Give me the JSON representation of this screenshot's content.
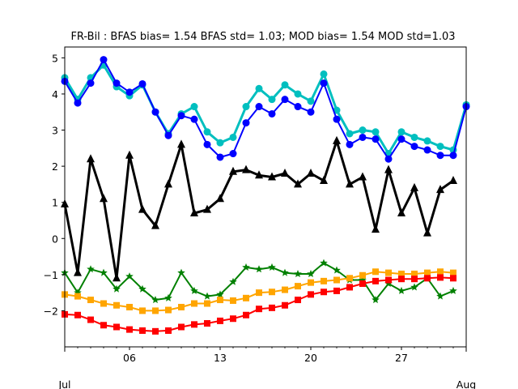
{
  "chart_data": {
    "type": "line",
    "title": "FR-Bil   : BFAS bias= 1.54 BFAS std= 1.03; MOD bias= 1.54 MOD std=1.03",
    "xlabel": "",
    "ylabel": "",
    "x": [
      "2012-07-01",
      "2012-07-02",
      "2012-07-03",
      "2012-07-04",
      "2012-07-05",
      "2012-07-06",
      "2012-07-07",
      "2012-07-08",
      "2012-07-09",
      "2012-07-10",
      "2012-07-11",
      "2012-07-12",
      "2012-07-13",
      "2012-07-14",
      "2012-07-15",
      "2012-07-16",
      "2012-07-17",
      "2012-07-18",
      "2012-07-19",
      "2012-07-20",
      "2012-07-21",
      "2012-07-22",
      "2012-07-23",
      "2012-07-24",
      "2012-07-25",
      "2012-07-26",
      "2012-07-27",
      "2012-07-28",
      "2012-07-29",
      "2012-07-30",
      "2012-07-31",
      "2012-08-01"
    ],
    "xlim": [
      "2012-07-01",
      "2012-08-01"
    ],
    "xticks": [
      {
        "date": "2012-07-06",
        "label": "06"
      },
      {
        "date": "2012-07-13",
        "label": "13"
      },
      {
        "date": "2012-07-20",
        "label": "20"
      },
      {
        "date": "2012-07-27",
        "label": "27"
      }
    ],
    "xticks_secondary": [
      {
        "date": "2012-07-01",
        "label": "Jul"
      },
      {
        "date": "2012-08-01",
        "label": "Aug"
      }
    ],
    "ylim": [
      -3.0,
      5.3
    ],
    "yticks": [
      -2,
      -1,
      0,
      1,
      2,
      3,
      4,
      5
    ],
    "grid": false,
    "series": [
      {
        "color": "#00bfbf",
        "marker": "circle",
        "linewidth": 3,
        "values": [
          4.45,
          3.85,
          4.45,
          4.8,
          4.2,
          3.95,
          4.25,
          3.5,
          2.9,
          3.45,
          3.65,
          2.95,
          2.65,
          2.8,
          3.65,
          4.15,
          3.85,
          4.25,
          4.0,
          3.8,
          4.55,
          3.55,
          2.9,
          3.0,
          2.95,
          2.35,
          2.95,
          2.8,
          2.7,
          2.55,
          2.45,
          3.7
        ]
      },
      {
        "color": "#0000ff",
        "marker": "circle",
        "linewidth": 2,
        "values": [
          4.35,
          3.75,
          4.3,
          4.95,
          4.3,
          4.05,
          4.28,
          3.5,
          2.85,
          3.4,
          3.3,
          2.6,
          2.25,
          2.35,
          3.2,
          3.65,
          3.45,
          3.85,
          3.65,
          3.5,
          4.3,
          3.3,
          2.6,
          2.8,
          2.75,
          2.2,
          2.75,
          2.55,
          2.45,
          2.3,
          2.3,
          3.65
        ]
      },
      {
        "color": "#000000",
        "marker": "triangle",
        "linewidth": 3,
        "values": [
          0.95,
          -0.95,
          2.2,
          1.1,
          -1.1,
          2.3,
          0.8,
          0.35,
          1.5,
          2.6,
          0.7,
          0.8,
          1.1,
          1.85,
          1.9,
          1.75,
          1.7,
          1.8,
          1.5,
          1.8,
          1.6,
          2.7,
          1.5,
          1.7,
          0.25,
          1.9,
          0.7,
          1.4,
          0.15,
          1.35,
          1.6,
          null
        ]
      },
      {
        "color": "#008000",
        "marker": "star",
        "linewidth": 2,
        "values": [
          -0.95,
          -1.5,
          -0.85,
          -0.95,
          -1.4,
          -1.05,
          -1.4,
          -1.7,
          -1.65,
          -0.95,
          -1.45,
          -1.6,
          -1.55,
          -1.2,
          -0.8,
          -0.85,
          -0.8,
          -0.95,
          -0.98,
          -0.98,
          -0.68,
          -0.88,
          -1.15,
          -1.15,
          -1.7,
          -1.25,
          -1.45,
          -1.35,
          -1.1,
          -1.6,
          -1.45,
          null
        ]
      },
      {
        "color": "#ffa500",
        "marker": "square",
        "linewidth": 2,
        "values": [
          -1.55,
          -1.6,
          -1.7,
          -1.8,
          -1.85,
          -1.9,
          -2.0,
          -2.0,
          -1.98,
          -1.9,
          -1.8,
          -1.8,
          -1.7,
          -1.72,
          -1.65,
          -1.5,
          -1.48,
          -1.42,
          -1.32,
          -1.22,
          -1.18,
          -1.15,
          -1.1,
          -1.02,
          -0.92,
          -0.95,
          -0.98,
          -0.98,
          -0.95,
          -0.92,
          -0.95,
          null
        ]
      },
      {
        "color": "#ff0000",
        "marker": "square",
        "linewidth": 2,
        "values": [
          -2.1,
          -2.12,
          -2.25,
          -2.4,
          -2.45,
          -2.52,
          -2.55,
          -2.57,
          -2.55,
          -2.45,
          -2.38,
          -2.35,
          -2.28,
          -2.22,
          -2.12,
          -1.95,
          -1.92,
          -1.85,
          -1.7,
          -1.55,
          -1.48,
          -1.45,
          -1.35,
          -1.25,
          -1.18,
          -1.15,
          -1.12,
          -1.12,
          -1.1,
          -1.08,
          -1.1,
          null
        ]
      }
    ]
  }
}
